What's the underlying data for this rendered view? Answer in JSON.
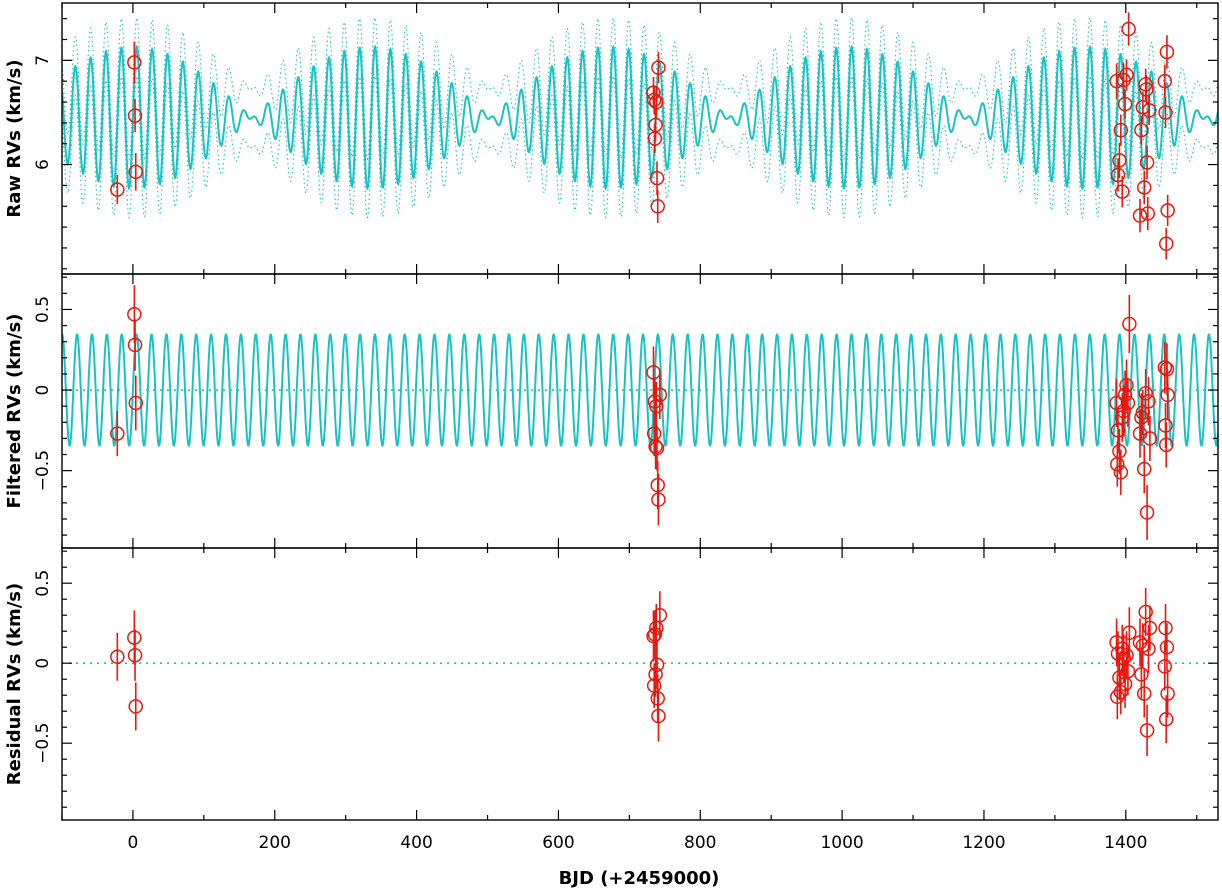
{
  "chart_data": {
    "type": "scatter",
    "xlabel": "BJD (+2459000)",
    "xlim": [
      -100,
      1530
    ],
    "x_ticks": [
      0,
      200,
      400,
      600,
      800,
      1000,
      1200,
      1400
    ],
    "x_tick_labels": [
      "0",
      "200",
      "400",
      "600",
      "800",
      "1000",
      "1200",
      "1400"
    ],
    "colors": {
      "model": "#19c3c3",
      "data": "#e8180f",
      "axis": "#000000"
    },
    "marker": "open-circle-with-errorbar",
    "panels": [
      {
        "name": "raw",
        "ylabel": "Raw RVs (km/s)",
        "ylim": [
          4.95,
          7.55
        ],
        "y_ticks": [
          6,
          7
        ],
        "y_tick_labels": [
          "6",
          "7"
        ],
        "model": {
          "description": "two-sinusoid model with dotted uncertainty envelope",
          "offset": 6.45,
          "components": [
            {
              "amplitude": 0.34,
              "period": 21.0
            },
            {
              "amplitude": 0.34,
              "period": 22.4
            }
          ],
          "envelope": 0.28
        },
        "points": [
          {
            "x": -22,
            "y": 5.76,
            "err": 0.14
          },
          {
            "x": 2,
            "y": 6.98,
            "err": 0.2
          },
          {
            "x": 3,
            "y": 6.47,
            "err": 0.16
          },
          {
            "x": 4,
            "y": 5.93,
            "err": 0.18
          },
          {
            "x": 734,
            "y": 6.69,
            "err": 0.15
          },
          {
            "x": 735,
            "y": 6.62,
            "err": 0.14
          },
          {
            "x": 736,
            "y": 6.25,
            "err": 0.14
          },
          {
            "x": 737,
            "y": 6.38,
            "err": 0.15
          },
          {
            "x": 738,
            "y": 6.6,
            "err": 0.15
          },
          {
            "x": 739,
            "y": 5.87,
            "err": 0.16
          },
          {
            "x": 740,
            "y": 5.6,
            "err": 0.16
          },
          {
            "x": 741,
            "y": 6.93,
            "err": 0.15
          },
          {
            "x": 1387,
            "y": 6.8,
            "err": 0.17
          },
          {
            "x": 1389,
            "y": 5.9,
            "err": 0.16
          },
          {
            "x": 1391,
            "y": 6.04,
            "err": 0.17
          },
          {
            "x": 1393,
            "y": 6.33,
            "err": 0.15
          },
          {
            "x": 1395,
            "y": 5.74,
            "err": 0.15
          },
          {
            "x": 1397,
            "y": 6.81,
            "err": 0.16
          },
          {
            "x": 1399,
            "y": 6.58,
            "err": 0.14
          },
          {
            "x": 1401,
            "y": 6.86,
            "err": 0.15
          },
          {
            "x": 1404,
            "y": 7.3,
            "err": 0.16
          },
          {
            "x": 1420,
            "y": 5.51,
            "err": 0.16
          },
          {
            "x": 1422,
            "y": 6.33,
            "err": 0.14
          },
          {
            "x": 1424,
            "y": 6.55,
            "err": 0.15
          },
          {
            "x": 1426,
            "y": 5.78,
            "err": 0.16
          },
          {
            "x": 1428,
            "y": 6.77,
            "err": 0.15
          },
          {
            "x": 1429,
            "y": 6.72,
            "err": 0.14
          },
          {
            "x": 1430,
            "y": 6.02,
            "err": 0.16
          },
          {
            "x": 1431,
            "y": 5.53,
            "err": 0.16
          },
          {
            "x": 1433,
            "y": 6.52,
            "err": 0.14
          },
          {
            "x": 1455,
            "y": 6.8,
            "err": 0.16
          },
          {
            "x": 1456,
            "y": 6.5,
            "err": 0.15
          },
          {
            "x": 1457,
            "y": 5.24,
            "err": 0.15
          },
          {
            "x": 1458,
            "y": 7.08,
            "err": 0.16
          },
          {
            "x": 1459,
            "y": 5.56,
            "err": 0.15
          }
        ]
      },
      {
        "name": "filtered",
        "ylabel": "Filtered RVs (km/s)",
        "ylim": [
          -0.98,
          0.72
        ],
        "y_ticks": [
          -0.5,
          0,
          0.5
        ],
        "y_tick_labels": [
          "−0.5",
          "0",
          "0.5"
        ],
        "zero_line": true,
        "model": {
          "description": "single sinusoid",
          "amplitude": 0.345,
          "period": 21.0,
          "phase": 0.0
        },
        "points": [
          {
            "x": -22,
            "y": -0.27,
            "err": 0.14
          },
          {
            "x": 2,
            "y": 0.47,
            "err": 0.18
          },
          {
            "x": 3,
            "y": 0.28,
            "err": 0.16
          },
          {
            "x": 4,
            "y": -0.08,
            "err": 0.17
          },
          {
            "x": 734,
            "y": 0.11,
            "err": 0.16
          },
          {
            "x": 735,
            "y": -0.27,
            "err": 0.14
          },
          {
            "x": 736,
            "y": -0.07,
            "err": 0.15
          },
          {
            "x": 737,
            "y": -0.35,
            "err": 0.14
          },
          {
            "x": 738,
            "y": -0.1,
            "err": 0.15
          },
          {
            "x": 739,
            "y": -0.36,
            "err": 0.14
          },
          {
            "x": 740,
            "y": -0.59,
            "err": 0.15
          },
          {
            "x": 741,
            "y": -0.68,
            "err": 0.16
          },
          {
            "x": 743,
            "y": -0.03,
            "err": 0.15
          },
          {
            "x": 1387,
            "y": -0.08,
            "err": 0.15
          },
          {
            "x": 1388,
            "y": -0.46,
            "err": 0.14
          },
          {
            "x": 1389,
            "y": -0.25,
            "err": 0.14
          },
          {
            "x": 1391,
            "y": -0.38,
            "err": 0.14
          },
          {
            "x": 1393,
            "y": -0.51,
            "err": 0.14
          },
          {
            "x": 1395,
            "y": -0.17,
            "err": 0.15
          },
          {
            "x": 1397,
            "y": -0.13,
            "err": 0.16
          },
          {
            "x": 1399,
            "y": -0.03,
            "err": 0.15
          },
          {
            "x": 1401,
            "y": 0.03,
            "err": 0.16
          },
          {
            "x": 1403,
            "y": -0.08,
            "err": 0.15
          },
          {
            "x": 1405,
            "y": 0.41,
            "err": 0.18
          },
          {
            "x": 1420,
            "y": -0.27,
            "err": 0.15
          },
          {
            "x": 1422,
            "y": -0.17,
            "err": 0.15
          },
          {
            "x": 1424,
            "y": -0.14,
            "err": 0.14
          },
          {
            "x": 1426,
            "y": -0.49,
            "err": 0.15
          },
          {
            "x": 1428,
            "y": -0.02,
            "err": 0.15
          },
          {
            "x": 1430,
            "y": -0.76,
            "err": 0.17
          },
          {
            "x": 1432,
            "y": -0.07,
            "err": 0.15
          },
          {
            "x": 1434,
            "y": -0.3,
            "err": 0.14
          },
          {
            "x": 1455,
            "y": 0.14,
            "err": 0.16
          },
          {
            "x": 1456,
            "y": -0.22,
            "err": 0.14
          },
          {
            "x": 1457,
            "y": -0.34,
            "err": 0.14
          },
          {
            "x": 1458,
            "y": 0.13,
            "err": 0.16
          },
          {
            "x": 1459,
            "y": -0.03,
            "err": 0.15
          }
        ]
      },
      {
        "name": "residual",
        "ylabel": "Residual RVs (km/s)",
        "ylim": [
          -0.98,
          0.72
        ],
        "y_ticks": [
          -0.5,
          0,
          0.5
        ],
        "y_tick_labels": [
          "−0.5",
          "0",
          "0.5"
        ],
        "zero_line": true,
        "points": [
          {
            "x": -22,
            "y": 0.04,
            "err": 0.15
          },
          {
            "x": 2,
            "y": 0.16,
            "err": 0.17
          },
          {
            "x": 3,
            "y": 0.05,
            "err": 0.16
          },
          {
            "x": 4,
            "y": -0.27,
            "err": 0.15
          },
          {
            "x": 734,
            "y": 0.17,
            "err": 0.16
          },
          {
            "x": 735,
            "y": -0.14,
            "err": 0.14
          },
          {
            "x": 736,
            "y": 0.18,
            "err": 0.15
          },
          {
            "x": 737,
            "y": -0.07,
            "err": 0.14
          },
          {
            "x": 738,
            "y": 0.22,
            "err": 0.15
          },
          {
            "x": 739,
            "y": -0.01,
            "err": 0.15
          },
          {
            "x": 740,
            "y": -0.22,
            "err": 0.15
          },
          {
            "x": 741,
            "y": -0.33,
            "err": 0.16
          },
          {
            "x": 743,
            "y": 0.3,
            "err": 0.15
          },
          {
            "x": 1387,
            "y": 0.13,
            "err": 0.15
          },
          {
            "x": 1388,
            "y": -0.21,
            "err": 0.14
          },
          {
            "x": 1389,
            "y": 0.06,
            "err": 0.14
          },
          {
            "x": 1391,
            "y": -0.09,
            "err": 0.14
          },
          {
            "x": 1393,
            "y": -0.18,
            "err": 0.14
          },
          {
            "x": 1395,
            "y": 0.09,
            "err": 0.15
          },
          {
            "x": 1397,
            "y": 0.03,
            "err": 0.15
          },
          {
            "x": 1399,
            "y": -0.13,
            "err": 0.15
          },
          {
            "x": 1401,
            "y": 0.05,
            "err": 0.15
          },
          {
            "x": 1403,
            "y": -0.05,
            "err": 0.15
          },
          {
            "x": 1405,
            "y": 0.19,
            "err": 0.16
          },
          {
            "x": 1420,
            "y": 0.13,
            "err": 0.15
          },
          {
            "x": 1422,
            "y": -0.07,
            "err": 0.15
          },
          {
            "x": 1424,
            "y": 0.11,
            "err": 0.14
          },
          {
            "x": 1426,
            "y": -0.19,
            "err": 0.15
          },
          {
            "x": 1428,
            "y": 0.32,
            "err": 0.15
          },
          {
            "x": 1430,
            "y": -0.42,
            "err": 0.16
          },
          {
            "x": 1432,
            "y": 0.09,
            "err": 0.15
          },
          {
            "x": 1434,
            "y": 0.22,
            "err": 0.14
          },
          {
            "x": 1455,
            "y": -0.02,
            "err": 0.15
          },
          {
            "x": 1456,
            "y": 0.22,
            "err": 0.15
          },
          {
            "x": 1457,
            "y": -0.35,
            "err": 0.15
          },
          {
            "x": 1458,
            "y": 0.1,
            "err": 0.15
          },
          {
            "x": 1459,
            "y": -0.19,
            "err": 0.15
          }
        ]
      }
    ]
  }
}
